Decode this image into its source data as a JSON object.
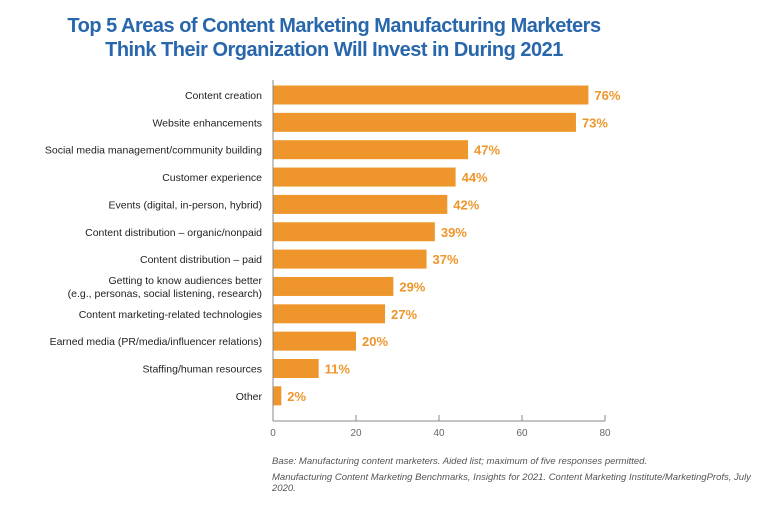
{
  "chart_data": {
    "type": "bar",
    "orientation": "horizontal",
    "title": [
      "Top 5 Areas of Content Marketing Manufacturing Marketers",
      "Think Their Organization Will Invest in During 2021"
    ],
    "categories": [
      [
        "Content creation"
      ],
      [
        "Website enhancements"
      ],
      [
        "Social media management/community building"
      ],
      [
        "Customer experience"
      ],
      [
        "Events (digital, in-person, hybrid)"
      ],
      [
        "Content distribution – organic/nonpaid"
      ],
      [
        "Content distribution – paid"
      ],
      [
        "Getting to know audiences better",
        "(e.g., personas, social listening, research)"
      ],
      [
        "Content marketing-related technologies"
      ],
      [
        "Earned media (PR/media/influencer relations)"
      ],
      [
        "Staffing/human resources"
      ],
      [
        "Other"
      ]
    ],
    "values": [
      76,
      73,
      47,
      44,
      42,
      39,
      37,
      29,
      27,
      20,
      11,
      2
    ],
    "data_labels": [
      "76%",
      "73%",
      "47%",
      "44%",
      "42%",
      "39%",
      "37%",
      "29%",
      "27%",
      "20%",
      "11%",
      "2%"
    ],
    "xlim": [
      0,
      80
    ],
    "xticks": [
      "0",
      "20",
      "40",
      "60",
      "80"
    ],
    "grid": false,
    "bar_color": "#ee962b",
    "label_color": "#ee962b",
    "title_color": "#2867ab"
  },
  "footnotes": [
    "Base: Manufacturing content marketers. Aided list; maximum of five responses permitted.",
    "Manufacturing Content Marketing Benchmarks, Insights for 2021. Content Marketing Institute/MarketingProfs, July 2020."
  ]
}
